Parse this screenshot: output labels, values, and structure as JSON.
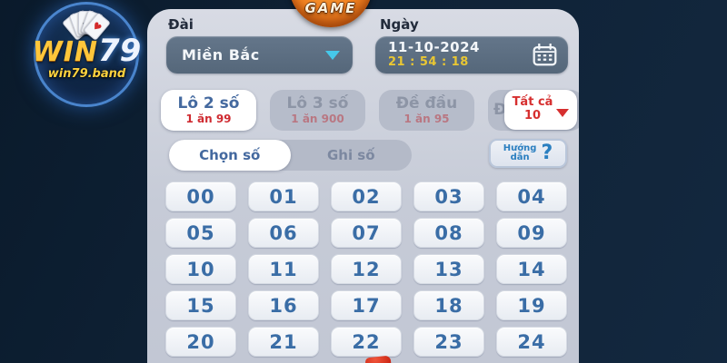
{
  "brand": {
    "logo_primary": "WIN",
    "logo_secondary": "79",
    "domain": "win79.band",
    "card_suits": [
      "♦",
      "♠",
      "♣",
      "♠",
      "♥"
    ]
  },
  "game_badge": {
    "label": "GAME"
  },
  "controls": {
    "station_label": "Đài",
    "station_value": "Miền Bắc",
    "date_label": "Ngày",
    "date_value": "11-10-2024",
    "time_value": "21 : 54 : 18"
  },
  "bet_tabs": [
    {
      "label": "Lô 2 số",
      "rate": "1 ăn 99",
      "active": true
    },
    {
      "label": "Lô 3 số",
      "rate": "1 ăn 900",
      "active": false
    },
    {
      "label": "Đề đầu",
      "rate": "1 ăn 95",
      "active": false
    },
    {
      "label": "Đề",
      "rate": "",
      "active": false
    }
  ],
  "filter_dropdown": {
    "label": "Tất cả",
    "value": "10"
  },
  "mode_tabs": [
    {
      "label": "Chọn số",
      "active": true
    },
    {
      "label": "Ghi số",
      "active": false
    }
  ],
  "help_button": {
    "line1": "Hướng",
    "line2": "dẫn",
    "mark": "?"
  },
  "numbers": [
    "00",
    "01",
    "02",
    "03",
    "04",
    "05",
    "06",
    "07",
    "08",
    "09",
    "10",
    "11",
    "12",
    "13",
    "14",
    "15",
    "16",
    "17",
    "18",
    "19",
    "20",
    "21",
    "22",
    "23",
    "24"
  ],
  "colors": {
    "background_navy": "#0f2236",
    "panel_gray": "#c6cbd7",
    "slate_box": "#5c6e80",
    "accent_cyan": "#46c8ea",
    "time_yellow": "#e9c733",
    "tab_blue": "#44699f",
    "rate_red": "#cf2b31",
    "filter_red": "#d62f2f",
    "help_blue": "#2b7fc0",
    "number_blue": "#3a6da6",
    "badge_orange": "#f08020",
    "logo_gold": "#ffc63a"
  }
}
